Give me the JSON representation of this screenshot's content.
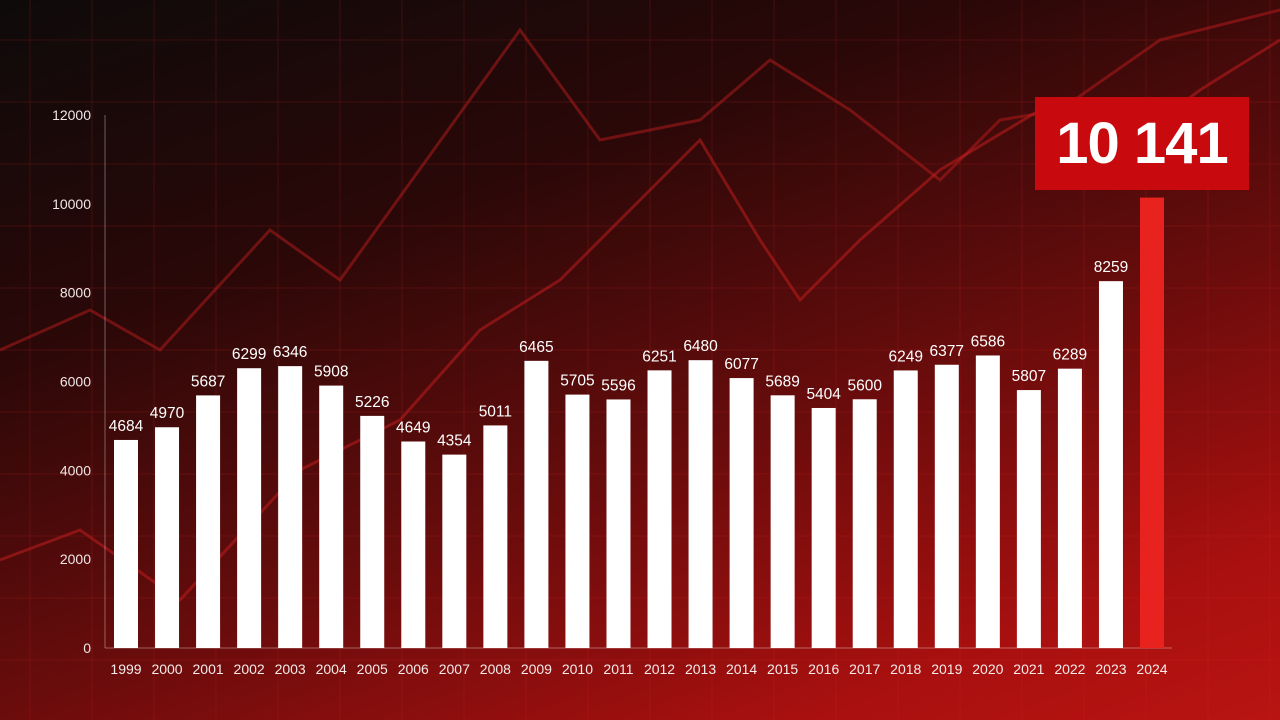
{
  "chart_data": {
    "type": "bar",
    "categories": [
      "1999",
      "2000",
      "2001",
      "2002",
      "2003",
      "2004",
      "2005",
      "2006",
      "2007",
      "2008",
      "2009",
      "2010",
      "2011",
      "2012",
      "2013",
      "2014",
      "2015",
      "2016",
      "2017",
      "2018",
      "2019",
      "2020",
      "2021",
      "2022",
      "2023",
      "2024"
    ],
    "values": [
      4684,
      4970,
      5687,
      6299,
      6346,
      5908,
      5226,
      4649,
      4354,
      5011,
      6465,
      5705,
      5596,
      6251,
      6480,
      6077,
      5689,
      5404,
      5600,
      6249,
      6377,
      6586,
      5807,
      6289,
      8259,
      10141
    ],
    "data_labels": [
      "4684",
      "4970",
      "5687",
      "6299",
      "6346",
      "5908",
      "5226",
      "4649",
      "4354",
      "5011",
      "6465",
      "5705",
      "5596",
      "6251",
      "6480",
      "6077",
      "5689",
      "5404",
      "5600",
      "6249",
      "6377",
      "6586",
      "5807",
      "6289",
      "8259",
      ""
    ],
    "highlight_label": "10 141",
    "y_ticks": [
      "0",
      "2000",
      "4000",
      "6000",
      "8000",
      "10000",
      "12000"
    ],
    "ylim": [
      0,
      12000
    ],
    "title": "",
    "xlabel": "",
    "ylabel": "",
    "grid": false,
    "colors": {
      "bar": "#ffffff",
      "highlight_bar": "#e8231f",
      "highlight_box": "#c80a0e"
    }
  }
}
